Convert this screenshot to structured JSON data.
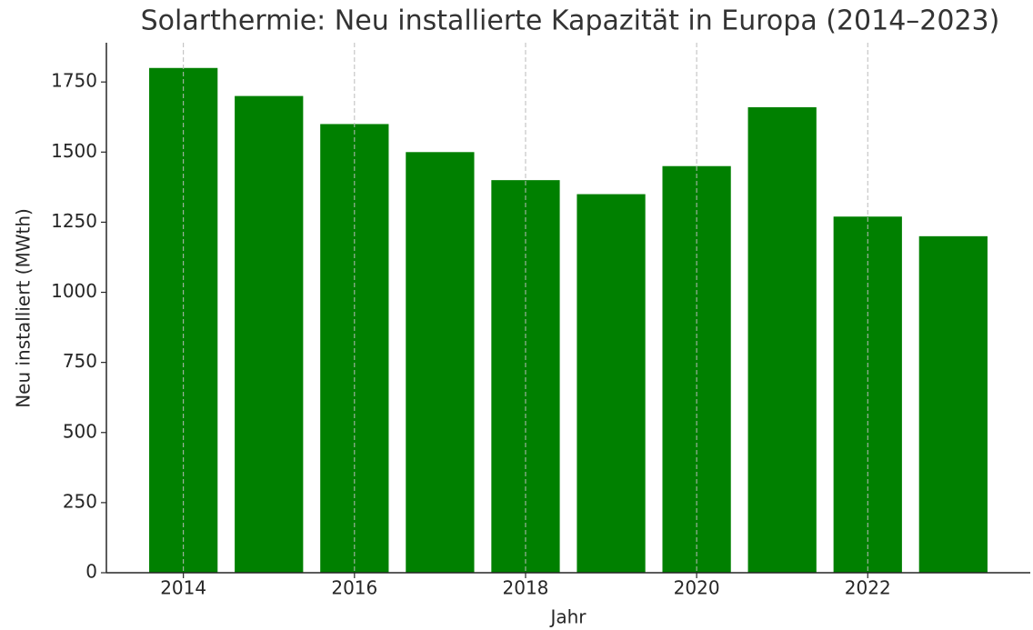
{
  "chart_data": {
    "type": "bar",
    "title": "Solarthermie: Neu installierte Kapazität in Europa (2014–2023)",
    "x_label": "Jahr",
    "y_label": "Neu installiert (MWth)",
    "x": [
      2014,
      2015,
      2016,
      2017,
      2018,
      2019,
      2020,
      2021,
      2022,
      2023
    ],
    "values": [
      1800,
      1700,
      1600,
      1500,
      1400,
      1350,
      1450,
      1660,
      1270,
      1200
    ],
    "color": "#008000",
    "xlim": [
      2013.1,
      2023.9
    ],
    "xticks": [
      2014,
      2016,
      2018,
      2020,
      2022
    ],
    "ylim": [
      0,
      1890
    ],
    "yticks": [
      0,
      250,
      500,
      750,
      1000,
      1250,
      1500,
      1750
    ],
    "grid": "x"
  }
}
